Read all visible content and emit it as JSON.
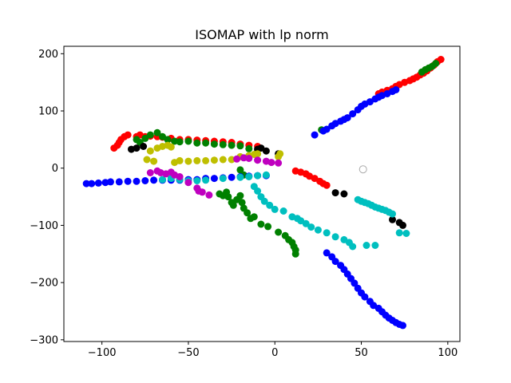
{
  "chart_data": {
    "type": "scatter",
    "title": "ISOMAP with lp norm",
    "xlabel": "",
    "ylabel": "",
    "xlim": [
      -122,
      107
    ],
    "ylim": [
      -303,
      213
    ],
    "xticks": [
      -100,
      -50,
      0,
      50,
      100
    ],
    "yticks": [
      200,
      100,
      0,
      -100,
      -200,
      -300
    ],
    "xtick_labels": [
      "−100",
      "−50",
      "0",
      "50",
      "100"
    ],
    "ytick_labels": [
      "200",
      "100",
      "0",
      "−100",
      "−200",
      "−300"
    ],
    "grid": false,
    "legend": false,
    "colors": {
      "red": "#ff0000",
      "green": "#008000",
      "blue": "#0000ff",
      "black": "#000000",
      "yellow": "#bfbf00",
      "cyan": "#00bfbf",
      "magenta": "#bf00bf",
      "open_marker": "#aaaaaa"
    },
    "open_point": [
      51,
      -2
    ],
    "series": [
      {
        "color": "red",
        "points": [
          [
            -93,
            35
          ],
          [
            -91,
            40
          ],
          [
            -90,
            45
          ],
          [
            -89,
            50
          ],
          [
            -87,
            55
          ],
          [
            -85,
            58
          ],
          [
            -80,
            55
          ],
          [
            -78,
            58
          ],
          [
            -75,
            55
          ],
          [
            -72,
            56
          ],
          [
            -68,
            55
          ],
          [
            -65,
            54
          ],
          [
            -60,
            52
          ],
          [
            -55,
            50
          ],
          [
            -50,
            50
          ],
          [
            -45,
            49
          ],
          [
            -40,
            48
          ],
          [
            -35,
            47
          ],
          [
            -30,
            46
          ],
          [
            -25,
            45
          ],
          [
            -20,
            42
          ],
          [
            -15,
            40
          ],
          [
            -10,
            38
          ],
          [
            12,
            -5
          ],
          [
            15,
            -7
          ],
          [
            18,
            -10
          ],
          [
            20,
            -14
          ],
          [
            23,
            -18
          ],
          [
            26,
            -23
          ],
          [
            28,
            -27
          ],
          [
            30,
            -30
          ],
          [
            60,
            130
          ],
          [
            62,
            133
          ],
          [
            65,
            136
          ],
          [
            68,
            139
          ],
          [
            70,
            143
          ],
          [
            72,
            146
          ],
          [
            75,
            150
          ],
          [
            78,
            153
          ],
          [
            80,
            156
          ],
          [
            82,
            159
          ],
          [
            84,
            163
          ],
          [
            86,
            166
          ],
          [
            88,
            170
          ],
          [
            90,
            175
          ],
          [
            92,
            180
          ],
          [
            94,
            186
          ],
          [
            96,
            190
          ]
        ]
      },
      {
        "color": "green",
        "points": [
          [
            -80,
            50
          ],
          [
            -78,
            45
          ],
          [
            -75,
            52
          ],
          [
            -72,
            58
          ],
          [
            -68,
            62
          ],
          [
            -65,
            55
          ],
          [
            -62,
            50
          ],
          [
            -58,
            47
          ],
          [
            -55,
            46
          ],
          [
            -50,
            47
          ],
          [
            -45,
            44
          ],
          [
            -40,
            44
          ],
          [
            -35,
            42
          ],
          [
            -30,
            41
          ],
          [
            -25,
            40
          ],
          [
            -20,
            39
          ],
          [
            -15,
            34
          ],
          [
            -32,
            -45
          ],
          [
            -30,
            -48
          ],
          [
            -28,
            -42
          ],
          [
            -27,
            -50
          ],
          [
            -25,
            -60
          ],
          [
            -24,
            -65
          ],
          [
            -22,
            -55
          ],
          [
            -20,
            -48
          ],
          [
            -19,
            -60
          ],
          [
            -18,
            -70
          ],
          [
            -16,
            -78
          ],
          [
            -14,
            -88
          ],
          [
            -20,
            -3
          ],
          [
            -18,
            -12
          ],
          [
            -12,
            -85
          ],
          [
            -8,
            -98
          ],
          [
            -4,
            -102
          ],
          [
            2,
            -112
          ],
          [
            6,
            -118
          ],
          [
            8,
            -125
          ],
          [
            10,
            -130
          ],
          [
            11,
            -137
          ],
          [
            12,
            -143
          ],
          [
            12,
            -150
          ],
          [
            27,
            67
          ],
          [
            85,
            168
          ],
          [
            87,
            172
          ],
          [
            89,
            175
          ],
          [
            91,
            178
          ],
          [
            93,
            183
          ]
        ]
      },
      {
        "color": "blue",
        "points": [
          [
            -109,
            -27
          ],
          [
            -106,
            -27
          ],
          [
            -102,
            -26
          ],
          [
            -98,
            -25
          ],
          [
            -95,
            -24
          ],
          [
            -90,
            -24
          ],
          [
            -85,
            -23
          ],
          [
            -80,
            -23
          ],
          [
            -75,
            -22
          ],
          [
            -70,
            -21
          ],
          [
            -65,
            -21
          ],
          [
            -60,
            -21
          ],
          [
            -55,
            -21
          ],
          [
            -50,
            -20
          ],
          [
            -45,
            -20
          ],
          [
            -40,
            -18
          ],
          [
            -35,
            -18
          ],
          [
            -30,
            -17
          ],
          [
            -25,
            -16
          ],
          [
            -20,
            -15
          ],
          [
            -15,
            -14
          ],
          [
            -10,
            -13
          ],
          [
            -5,
            -13
          ],
          [
            23,
            58
          ],
          [
            28,
            65
          ],
          [
            30,
            68
          ],
          [
            33,
            74
          ],
          [
            35,
            78
          ],
          [
            38,
            82
          ],
          [
            40,
            85
          ],
          [
            42,
            88
          ],
          [
            45,
            95
          ],
          [
            48,
            102
          ],
          [
            50,
            108
          ],
          [
            52,
            112
          ],
          [
            55,
            116
          ],
          [
            58,
            121
          ],
          [
            60,
            124
          ],
          [
            62,
            127
          ],
          [
            65,
            130
          ],
          [
            68,
            134
          ],
          [
            70,
            137
          ],
          [
            30,
            -148
          ],
          [
            33,
            -155
          ],
          [
            35,
            -163
          ],
          [
            38,
            -170
          ],
          [
            40,
            -177
          ],
          [
            42,
            -185
          ],
          [
            44,
            -193
          ],
          [
            46,
            -201
          ],
          [
            48,
            -210
          ],
          [
            50,
            -218
          ],
          [
            52,
            -225
          ],
          [
            55,
            -233
          ],
          [
            57,
            -240
          ],
          [
            60,
            -245
          ],
          [
            62,
            -251
          ],
          [
            64,
            -257
          ],
          [
            66,
            -262
          ],
          [
            68,
            -266
          ],
          [
            70,
            -270
          ],
          [
            72,
            -273
          ],
          [
            74,
            -275
          ]
        ]
      },
      {
        "color": "black",
        "points": [
          [
            -83,
            33
          ],
          [
            -80,
            35
          ],
          [
            -76,
            38
          ],
          [
            -10,
            33
          ],
          [
            -8,
            35
          ],
          [
            -5,
            30
          ],
          [
            2,
            25
          ],
          [
            35,
            -43
          ],
          [
            40,
            -45
          ],
          [
            68,
            -90
          ],
          [
            72,
            -95
          ],
          [
            74,
            -100
          ]
        ]
      },
      {
        "color": "yellow",
        "points": [
          [
            -74,
            15
          ],
          [
            -70,
            12
          ],
          [
            -72,
            30
          ],
          [
            -68,
            35
          ],
          [
            -65,
            38
          ],
          [
            -62,
            40
          ],
          [
            -60,
            37
          ],
          [
            -58,
            10
          ],
          [
            -55,
            13
          ],
          [
            -50,
            12
          ],
          [
            -45,
            13
          ],
          [
            -40,
            13
          ],
          [
            -35,
            14
          ],
          [
            -30,
            15
          ],
          [
            -25,
            15
          ],
          [
            -20,
            20
          ],
          [
            -15,
            22
          ],
          [
            -12,
            24
          ],
          [
            -10,
            25
          ],
          [
            2,
            20
          ],
          [
            3,
            25
          ]
        ]
      },
      {
        "color": "cyan",
        "points": [
          [
            -65,
            -20
          ],
          [
            -60,
            -18
          ],
          [
            -55,
            -20
          ],
          [
            -50,
            -22
          ],
          [
            -45,
            -22
          ],
          [
            -40,
            -21
          ],
          [
            -30,
            -18
          ],
          [
            -20,
            -16
          ],
          [
            -15,
            -15
          ],
          [
            -10,
            -13
          ],
          [
            -5,
            -12
          ],
          [
            -12,
            -32
          ],
          [
            -10,
            -40
          ],
          [
            -8,
            -50
          ],
          [
            -6,
            -58
          ],
          [
            -3,
            -65
          ],
          [
            0,
            -72
          ],
          [
            5,
            -75
          ],
          [
            10,
            -85
          ],
          [
            13,
            -88
          ],
          [
            15,
            -92
          ],
          [
            18,
            -97
          ],
          [
            21,
            -103
          ],
          [
            25,
            -108
          ],
          [
            30,
            -113
          ],
          [
            35,
            -120
          ],
          [
            40,
            -125
          ],
          [
            43,
            -130
          ],
          [
            45,
            -137
          ],
          [
            53,
            -135
          ],
          [
            58,
            -135
          ],
          [
            48,
            -55
          ],
          [
            50,
            -58
          ],
          [
            52,
            -60
          ],
          [
            54,
            -62
          ],
          [
            56,
            -65
          ],
          [
            58,
            -68
          ],
          [
            60,
            -70
          ],
          [
            62,
            -72
          ],
          [
            64,
            -74
          ],
          [
            66,
            -77
          ],
          [
            68,
            -80
          ],
          [
            72,
            -113
          ],
          [
            76,
            -114
          ]
        ]
      },
      {
        "color": "magenta",
        "points": [
          [
            -72,
            -8
          ],
          [
            -68,
            -5
          ],
          [
            -66,
            -8
          ],
          [
            -63,
            -10
          ],
          [
            -60,
            -7
          ],
          [
            -58,
            -12
          ],
          [
            -55,
            -15
          ],
          [
            -50,
            -25
          ],
          [
            -45,
            -35
          ],
          [
            -44,
            -40
          ],
          [
            -42,
            -42
          ],
          [
            -38,
            -47
          ],
          [
            -22,
            16
          ],
          [
            -18,
            18
          ],
          [
            -15,
            17
          ],
          [
            -10,
            14
          ],
          [
            -5,
            12
          ],
          [
            -2,
            10
          ],
          [
            2,
            9
          ]
        ]
      }
    ]
  }
}
